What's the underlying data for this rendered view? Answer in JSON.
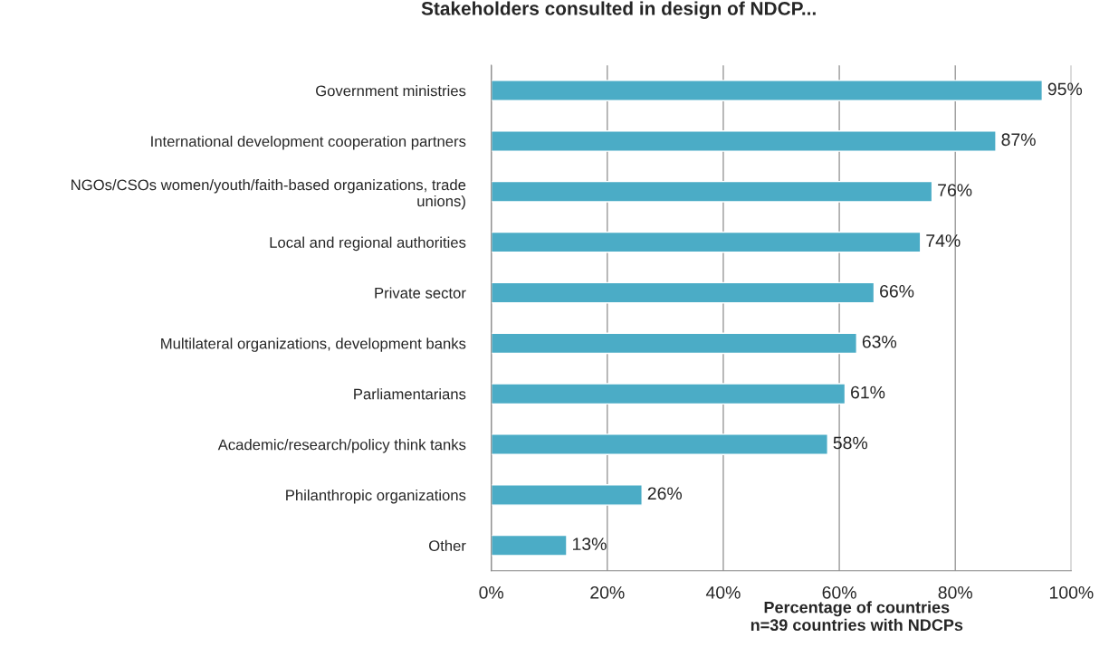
{
  "chart_data": {
    "type": "bar",
    "orientation": "horizontal",
    "title": "Stakeholders consulted in design of NDCP...",
    "xlabel": "Percentage of countries\nn=39 countries with NDCPs",
    "categories": [
      "Government ministries",
      "International development cooperation partners",
      "NGOs/CSOs women/youth/faith-based organizations, trade\nunions)",
      "Local and regional authorities",
      "Private sector",
      "Multilateral organizations, development banks",
      "Parliamentarians",
      "Academic/research/policy think tanks",
      "Philanthropic organizations",
      "Other"
    ],
    "values": [
      95,
      87,
      76,
      74,
      66,
      63,
      61,
      58,
      26,
      13
    ],
    "value_labels": [
      "95%",
      "87%",
      "76%",
      "74%",
      "66%",
      "63%",
      "61%",
      "58%",
      "26%",
      "13%"
    ],
    "color": "#4bacc6",
    "xlim": [
      0,
      100
    ],
    "xticks": [
      {
        "value": 0,
        "label": "0%"
      },
      {
        "value": 20,
        "label": "20%"
      },
      {
        "value": 40,
        "label": "40%"
      },
      {
        "value": 60,
        "label": "60%"
      },
      {
        "value": 80,
        "label": "80%"
      },
      {
        "value": 100,
        "label": "100%"
      }
    ],
    "grid": "x",
    "legend": false
  }
}
